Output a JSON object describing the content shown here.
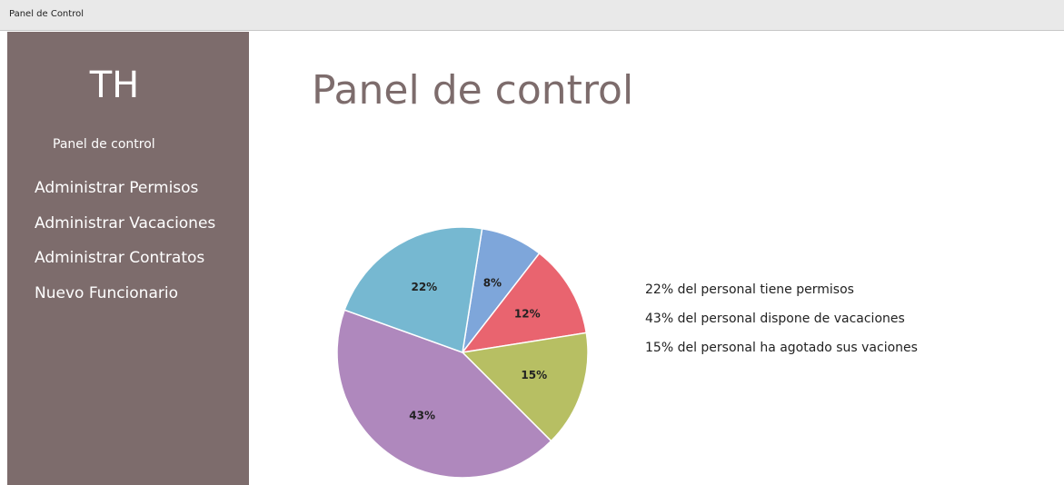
{
  "window": {
    "title": "Panel de Control"
  },
  "sidebar": {
    "logo": "TH",
    "current": "Panel de control",
    "items": [
      "Administrar Permisos",
      "Administrar Vacaciones",
      "Administrar Contratos",
      "Nuevo Funcionario"
    ]
  },
  "main": {
    "title": "Panel de control"
  },
  "chart_data": {
    "type": "pie",
    "values": [
      8,
      12,
      15,
      43,
      22
    ],
    "value_labels": [
      "8%",
      "12%",
      "15%",
      "43%",
      "22%"
    ],
    "colors": [
      "#7ea6da",
      "#e9646f",
      "#b7bf63",
      "#af88bd",
      "#76b8d1"
    ]
  },
  "notes": [
    "22% del personal tiene permisos",
    "43% del personal dispone de vacaciones",
    "15% del personal ha agotado sus vaciones"
  ]
}
